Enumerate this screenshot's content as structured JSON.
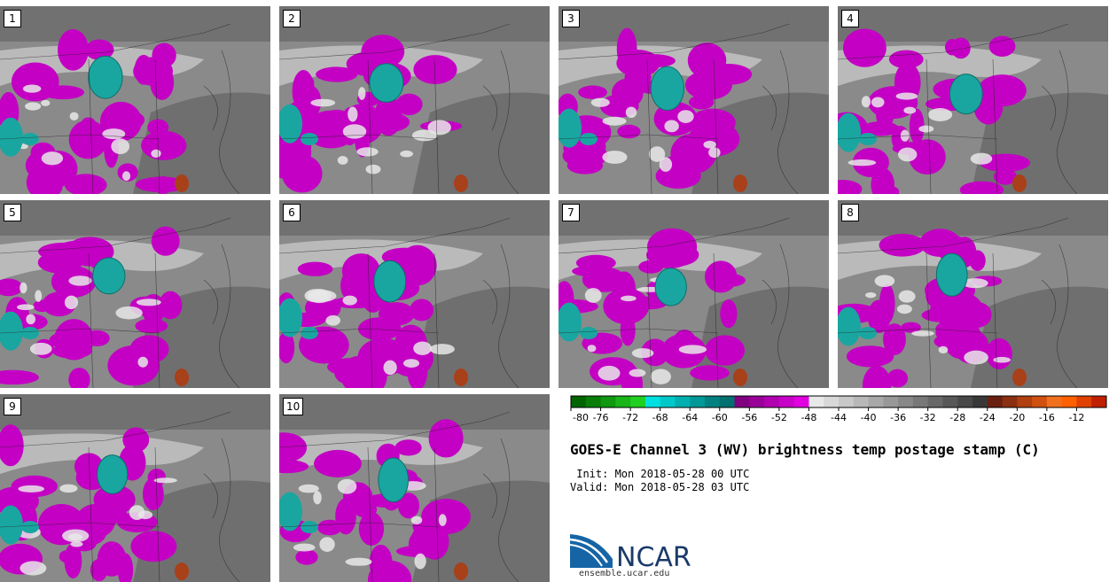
{
  "panels": [
    {
      "label": "1"
    },
    {
      "label": "2"
    },
    {
      "label": "3"
    },
    {
      "label": "4"
    },
    {
      "label": "5"
    },
    {
      "label": "6"
    },
    {
      "label": "7"
    },
    {
      "label": "8"
    },
    {
      "label": "9"
    },
    {
      "label": "10"
    }
  ],
  "colorbar": {
    "ticks": [
      "-80",
      "-76",
      "-72",
      "-68",
      "-64",
      "-60",
      "-56",
      "-52",
      "-48",
      "-44",
      "-40",
      "-36",
      "-32",
      "-28",
      "-24",
      "-20",
      "-16",
      "-12"
    ],
    "colors": [
      "#006400",
      "#087e08",
      "#109810",
      "#18b418",
      "#20d020",
      "#00e0e0",
      "#00c8c8",
      "#00b0b0",
      "#009898",
      "#008080",
      "#007070",
      "#800080",
      "#980098",
      "#b000b0",
      "#c800c8",
      "#e000e0",
      "#e8e8e8",
      "#d8d8d8",
      "#c8c8c8",
      "#b8b8b8",
      "#a8a8a8",
      "#989898",
      "#888888",
      "#787878",
      "#686868",
      "#585858",
      "#484848",
      "#383838",
      "#6a2010",
      "#8a3010",
      "#b04010",
      "#d05010",
      "#f07020",
      "#ff6000",
      "#e04000",
      "#c02000"
    ]
  },
  "title": "GOES-E Channel 3 (WV) brightness temp postage stamp (C)",
  "init": " Init: Mon 2018-05-28 00 UTC",
  "valid": "Valid: Mon 2018-05-28 03 UTC",
  "logo_text": "NCAR",
  "url": "ensemble.ucar.edu",
  "map_colors": {
    "background": "#8a8a8a",
    "north_band": "#606060",
    "moist_light": "#cfcfcf",
    "cold_magenta": "#c400c4",
    "coldest_teal": "#1aa6a0",
    "warm_rust": "#a8401a"
  }
}
